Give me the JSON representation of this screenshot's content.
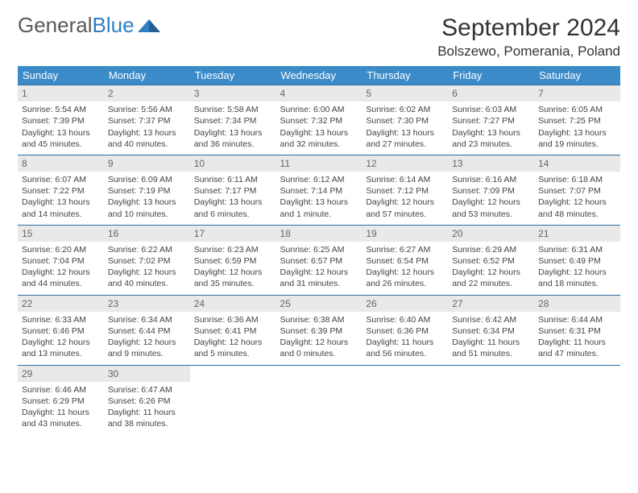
{
  "logo": {
    "text1": "General",
    "text2": "Blue"
  },
  "title": "September 2024",
  "location": "Bolszewo, Pomerania, Poland",
  "colors": {
    "header_bg": "#3b8bc8",
    "header_text": "#ffffff",
    "row_border": "#2f6fa3",
    "daynum_bg": "#e9e9e9",
    "logo_gray": "#5a5a5a",
    "logo_blue": "#2f7fc2"
  },
  "weekdays": [
    "Sunday",
    "Monday",
    "Tuesday",
    "Wednesday",
    "Thursday",
    "Friday",
    "Saturday"
  ],
  "days": [
    {
      "n": 1,
      "sr": "5:54 AM",
      "ss": "7:39 PM",
      "dl": "13 hours and 45 minutes."
    },
    {
      "n": 2,
      "sr": "5:56 AM",
      "ss": "7:37 PM",
      "dl": "13 hours and 40 minutes."
    },
    {
      "n": 3,
      "sr": "5:58 AM",
      "ss": "7:34 PM",
      "dl": "13 hours and 36 minutes."
    },
    {
      "n": 4,
      "sr": "6:00 AM",
      "ss": "7:32 PM",
      "dl": "13 hours and 32 minutes."
    },
    {
      "n": 5,
      "sr": "6:02 AM",
      "ss": "7:30 PM",
      "dl": "13 hours and 27 minutes."
    },
    {
      "n": 6,
      "sr": "6:03 AM",
      "ss": "7:27 PM",
      "dl": "13 hours and 23 minutes."
    },
    {
      "n": 7,
      "sr": "6:05 AM",
      "ss": "7:25 PM",
      "dl": "13 hours and 19 minutes."
    },
    {
      "n": 8,
      "sr": "6:07 AM",
      "ss": "7:22 PM",
      "dl": "13 hours and 14 minutes."
    },
    {
      "n": 9,
      "sr": "6:09 AM",
      "ss": "7:19 PM",
      "dl": "13 hours and 10 minutes."
    },
    {
      "n": 10,
      "sr": "6:11 AM",
      "ss": "7:17 PM",
      "dl": "13 hours and 6 minutes."
    },
    {
      "n": 11,
      "sr": "6:12 AM",
      "ss": "7:14 PM",
      "dl": "13 hours and 1 minute."
    },
    {
      "n": 12,
      "sr": "6:14 AM",
      "ss": "7:12 PM",
      "dl": "12 hours and 57 minutes."
    },
    {
      "n": 13,
      "sr": "6:16 AM",
      "ss": "7:09 PM",
      "dl": "12 hours and 53 minutes."
    },
    {
      "n": 14,
      "sr": "6:18 AM",
      "ss": "7:07 PM",
      "dl": "12 hours and 48 minutes."
    },
    {
      "n": 15,
      "sr": "6:20 AM",
      "ss": "7:04 PM",
      "dl": "12 hours and 44 minutes."
    },
    {
      "n": 16,
      "sr": "6:22 AM",
      "ss": "7:02 PM",
      "dl": "12 hours and 40 minutes."
    },
    {
      "n": 17,
      "sr": "6:23 AM",
      "ss": "6:59 PM",
      "dl": "12 hours and 35 minutes."
    },
    {
      "n": 18,
      "sr": "6:25 AM",
      "ss": "6:57 PM",
      "dl": "12 hours and 31 minutes."
    },
    {
      "n": 19,
      "sr": "6:27 AM",
      "ss": "6:54 PM",
      "dl": "12 hours and 26 minutes."
    },
    {
      "n": 20,
      "sr": "6:29 AM",
      "ss": "6:52 PM",
      "dl": "12 hours and 22 minutes."
    },
    {
      "n": 21,
      "sr": "6:31 AM",
      "ss": "6:49 PM",
      "dl": "12 hours and 18 minutes."
    },
    {
      "n": 22,
      "sr": "6:33 AM",
      "ss": "6:46 PM",
      "dl": "12 hours and 13 minutes."
    },
    {
      "n": 23,
      "sr": "6:34 AM",
      "ss": "6:44 PM",
      "dl": "12 hours and 9 minutes."
    },
    {
      "n": 24,
      "sr": "6:36 AM",
      "ss": "6:41 PM",
      "dl": "12 hours and 5 minutes."
    },
    {
      "n": 25,
      "sr": "6:38 AM",
      "ss": "6:39 PM",
      "dl": "12 hours and 0 minutes."
    },
    {
      "n": 26,
      "sr": "6:40 AM",
      "ss": "6:36 PM",
      "dl": "11 hours and 56 minutes."
    },
    {
      "n": 27,
      "sr": "6:42 AM",
      "ss": "6:34 PM",
      "dl": "11 hours and 51 minutes."
    },
    {
      "n": 28,
      "sr": "6:44 AM",
      "ss": "6:31 PM",
      "dl": "11 hours and 47 minutes."
    },
    {
      "n": 29,
      "sr": "6:46 AM",
      "ss": "6:29 PM",
      "dl": "11 hours and 43 minutes."
    },
    {
      "n": 30,
      "sr": "6:47 AM",
      "ss": "6:26 PM",
      "dl": "11 hours and 38 minutes."
    }
  ],
  "labels": {
    "sunrise": "Sunrise:",
    "sunset": "Sunset:",
    "daylight": "Daylight:"
  },
  "grid": {
    "start_weekday": 0,
    "total_cells": 35
  }
}
